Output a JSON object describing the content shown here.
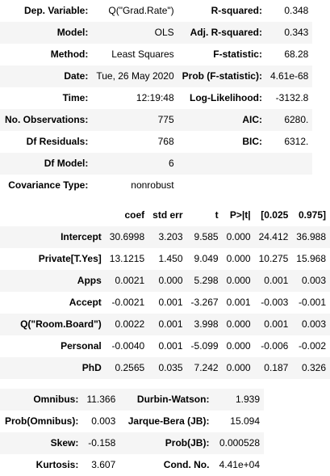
{
  "top": [
    {
      "l1": "Dep. Variable:",
      "v1": "Q(\"Grad.Rate\")",
      "l2": "R-squared:",
      "v2": "0.348"
    },
    {
      "l1": "Model:",
      "v1": "OLS",
      "l2": "Adj. R-squared:",
      "v2": "0.343"
    },
    {
      "l1": "Method:",
      "v1": "Least Squares",
      "l2": "F-statistic:",
      "v2": "68.28"
    },
    {
      "l1": "Date:",
      "v1": "Tue, 26 May 2020",
      "l2": "Prob (F-statistic):",
      "v2": "4.61e-68"
    },
    {
      "l1": "Time:",
      "v1": "12:19:48",
      "l2": "Log-Likelihood:",
      "v2": "-3132.8"
    },
    {
      "l1": "No. Observations:",
      "v1": "775",
      "l2": "AIC:",
      "v2": "6280."
    },
    {
      "l1": "Df Residuals:",
      "v1": "768",
      "l2": "BIC:",
      "v2": "6312."
    },
    {
      "l1": "Df Model:",
      "v1": "6",
      "l2": "",
      "v2": ""
    },
    {
      "l1": "Covariance Type:",
      "v1": "nonrobust",
      "l2": "",
      "v2": ""
    }
  ],
  "coef": {
    "headers": [
      "",
      "coef",
      "std err",
      "t",
      "P>|t|",
      "[0.025",
      "0.975]"
    ],
    "rows": [
      [
        "Intercept",
        "30.6998",
        "3.203",
        "9.585",
        "0.000",
        "24.412",
        "36.988"
      ],
      [
        "Private[T.Yes]",
        "13.1215",
        "1.450",
        "9.049",
        "0.000",
        "10.275",
        "15.968"
      ],
      [
        "Apps",
        "0.0021",
        "0.000",
        "5.298",
        "0.000",
        "0.001",
        "0.003"
      ],
      [
        "Accept",
        "-0.0021",
        "0.001",
        "-3.267",
        "0.001",
        "-0.003",
        "-0.001"
      ],
      [
        "Q(\"Room.Board\")",
        "0.0022",
        "0.001",
        "3.998",
        "0.000",
        "0.001",
        "0.003"
      ],
      [
        "Personal",
        "-0.0040",
        "0.001",
        "-5.099",
        "0.000",
        "-0.006",
        "-0.002"
      ],
      [
        "PhD",
        "0.2565",
        "0.035",
        "7.242",
        "0.000",
        "0.187",
        "0.326"
      ]
    ]
  },
  "bottom": [
    {
      "l1": "Omnibus:",
      "v1": "11.366",
      "l2": "Durbin-Watson:",
      "v2": "1.939"
    },
    {
      "l1": "Prob(Omnibus):",
      "v1": "0.003",
      "l2": "Jarque-Bera (JB):",
      "v2": "15.094"
    },
    {
      "l1": "Skew:",
      "v1": "-0.158",
      "l2": "Prob(JB):",
      "v2": "0.000528"
    },
    {
      "l1": "Kurtosis:",
      "v1": "3.607",
      "l2": "Cond. No.",
      "v2": "4.41e+04"
    }
  ]
}
